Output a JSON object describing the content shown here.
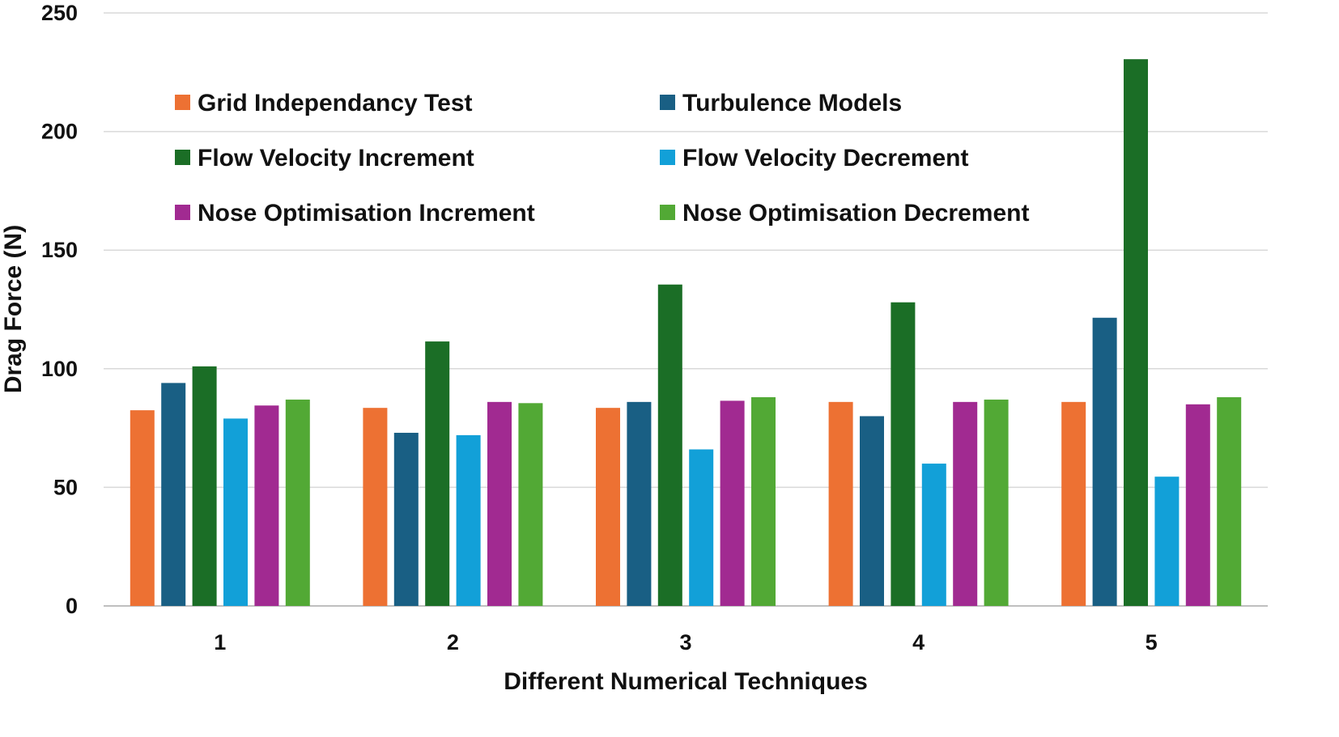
{
  "chart_data": {
    "type": "bar",
    "title": "",
    "xlabel": "Different Numerical Techniques",
    "ylabel": "Drag Force (N)",
    "ylim": [
      0,
      250
    ],
    "yticks": [
      "0",
      "50",
      "100",
      "150",
      "200",
      "250"
    ],
    "ytick_values": [
      0,
      50,
      100,
      150,
      200,
      250
    ],
    "categories": [
      "1",
      "2",
      "3",
      "4",
      "5"
    ],
    "grid": "horizontal",
    "legend_position": "top-left, inside plot, two columns",
    "series": [
      {
        "name": "Grid Independancy Test",
        "color": "#ED7133",
        "values": [
          82.5,
          83.5,
          83.5,
          86,
          86
        ]
      },
      {
        "name": "Turbulence Models",
        "color": "#195F84",
        "values": [
          94,
          73,
          86,
          80,
          121.5
        ]
      },
      {
        "name": "Flow Velocity Increment",
        "color": "#1B6E26",
        "values": [
          101,
          111.5,
          135.5,
          128,
          230.5
        ]
      },
      {
        "name": "Flow Velocity Decrement",
        "color": "#12A0D8",
        "values": [
          79,
          72,
          66,
          60,
          54.5
        ]
      },
      {
        "name": "Nose Optimisation Increment",
        "color": "#A12A91",
        "values": [
          84.5,
          86,
          86.5,
          86,
          85
        ]
      },
      {
        "name": "Nose Optimisation Decrement",
        "color": "#52A935",
        "values": [
          87,
          85.5,
          88,
          87,
          88
        ]
      }
    ]
  }
}
